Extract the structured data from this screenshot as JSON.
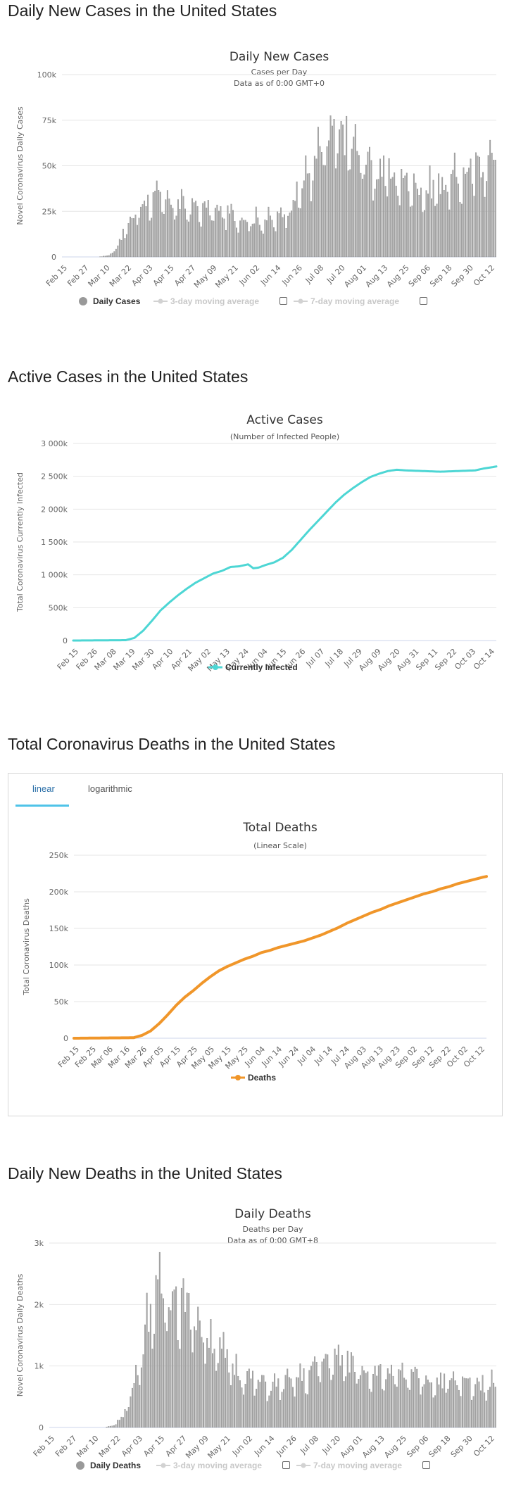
{
  "sections": {
    "daily_cases": "Daily New Cases in the United States",
    "active_cases": "Active Cases in the United States",
    "total_deaths": "Total Coronavirus Deaths in the United States",
    "daily_deaths": "Daily New Deaths in the United States"
  },
  "tabs": {
    "linear": "linear",
    "logarithmic": "logarithmic"
  },
  "legends": {
    "daily_cases": {
      "main": "Daily Cases",
      "ma3": "3-day moving average",
      "ma7": "7-day moving average"
    },
    "active_cases": {
      "main": "Currently Infected"
    },
    "total_deaths": {
      "main": "Deaths"
    },
    "daily_deaths": {
      "main": "Daily Deaths",
      "ma3": "3-day moving average",
      "ma7": "7-day moving average"
    }
  },
  "colors": {
    "bar": "#a8a8a8",
    "active": "#4dd6d4",
    "deaths": "#f0962a",
    "tab_accent": "#4fc3e8",
    "checkbox_border": "#666666"
  },
  "icons": {
    "legend_marker_main": "circle-marker",
    "legend_marker_disabled": "line-dot-marker",
    "checkbox": "empty-checkbox"
  },
  "chart_data": [
    {
      "id": "daily_cases",
      "type": "bar",
      "title": "Daily New Cases",
      "subtitle": "Cases per Day",
      "subtitle2": "Data as of 0:00 GMT+0",
      "xlabel": "",
      "ylabel": "Novel Coronavirus Daily Cases",
      "start_date": "2020-02-15",
      "num_days": 245,
      "x_tick_labels": [
        "Feb 15",
        "Feb 27",
        "Mar 10",
        "Mar 22",
        "Apr 03",
        "Apr 15",
        "Apr 27",
        "May 09",
        "May 21",
        "Jun 02",
        "Jun 14",
        "Jun 26",
        "Jul 08",
        "Jul 20",
        "Aug 01",
        "Aug 13",
        "Aug 25",
        "Sep 06",
        "Sep 18",
        "Sep 30",
        "Oct 12"
      ],
      "y_tick_labels": [
        "0",
        "25k",
        "50k",
        "75k",
        "100k"
      ],
      "ylim": [
        0,
        100000
      ],
      "grid": true,
      "series": [
        {
          "name": "Daily Cases",
          "keypoints": [
            [
              0,
              0
            ],
            [
              20,
              0
            ],
            [
              26,
              800
            ],
            [
              30,
              5000
            ],
            [
              35,
              15000
            ],
            [
              40,
              22000
            ],
            [
              45,
              30000
            ],
            [
              50,
              33000
            ],
            [
              60,
              31000
            ],
            [
              70,
              28000
            ],
            [
              80,
              27000
            ],
            [
              90,
              25000
            ],
            [
              100,
              22000
            ],
            [
              110,
              21000
            ],
            [
              120,
              21000
            ],
            [
              125,
              25000
            ],
            [
              130,
              32000
            ],
            [
              135,
              40000
            ],
            [
              140,
              50000
            ],
            [
              145,
              58000
            ],
            [
              150,
              65000
            ],
            [
              155,
              68000
            ],
            [
              160,
              67000
            ],
            [
              165,
              60000
            ],
            [
              170,
              55000
            ],
            [
              175,
              50000
            ],
            [
              180,
              48000
            ],
            [
              190,
              43000
            ],
            [
              200,
              40000
            ],
            [
              205,
              37000
            ],
            [
              210,
              40000
            ],
            [
              220,
              43000
            ],
            [
              230,
              48000
            ],
            [
              240,
              55000
            ],
            [
              244,
              58000
            ]
          ]
        }
      ]
    },
    {
      "id": "active_cases",
      "type": "line",
      "title": "Active Cases",
      "subtitle": "(Number of Infected People)",
      "xlabel": "",
      "ylabel": "Total Coronavirus Currently Infected",
      "start_date": "2020-02-15",
      "num_days": 243,
      "x_tick_labels": [
        "Feb 15",
        "Feb 26",
        "Mar 08",
        "Mar 19",
        "Mar 30",
        "Apr 10",
        "Apr 21",
        "May 02",
        "May 13",
        "May 24",
        "Jun 04",
        "Jun 15",
        "Jun 26",
        "Jul 07",
        "Jul 18",
        "Jul 29",
        "Aug 09",
        "Aug 20",
        "Aug 31",
        "Sep 11",
        "Sep 22",
        "Oct 03",
        "Oct 14"
      ],
      "y_tick_labels": [
        "0",
        "500k",
        "1 000k",
        "1 500k",
        "2 000k",
        "2 500k",
        "3 000k"
      ],
      "ylim": [
        0,
        3000000
      ],
      "grid": true,
      "series": [
        {
          "name": "Currently Infected",
          "keypoints": [
            [
              0,
              0
            ],
            [
              30,
              5000
            ],
            [
              35,
              40000
            ],
            [
              40,
              150000
            ],
            [
              45,
              300000
            ],
            [
              50,
              460000
            ],
            [
              55,
              580000
            ],
            [
              60,
              690000
            ],
            [
              65,
              790000
            ],
            [
              70,
              880000
            ],
            [
              75,
              950000
            ],
            [
              80,
              1020000
            ],
            [
              85,
              1060000
            ],
            [
              90,
              1120000
            ],
            [
              95,
              1130000
            ],
            [
              100,
              1160000
            ],
            [
              103,
              1100000
            ],
            [
              106,
              1110000
            ],
            [
              110,
              1150000
            ],
            [
              115,
              1190000
            ],
            [
              120,
              1260000
            ],
            [
              125,
              1380000
            ],
            [
              130,
              1530000
            ],
            [
              135,
              1680000
            ],
            [
              140,
              1820000
            ],
            [
              145,
              1960000
            ],
            [
              150,
              2100000
            ],
            [
              155,
              2220000
            ],
            [
              160,
              2320000
            ],
            [
              165,
              2410000
            ],
            [
              170,
              2490000
            ],
            [
              175,
              2540000
            ],
            [
              180,
              2580000
            ],
            [
              185,
              2600000
            ],
            [
              190,
              2590000
            ],
            [
              200,
              2580000
            ],
            [
              210,
              2570000
            ],
            [
              220,
              2580000
            ],
            [
              230,
              2590000
            ],
            [
              235,
              2620000
            ],
            [
              240,
              2640000
            ],
            [
              242,
              2650000
            ]
          ]
        }
      ]
    },
    {
      "id": "total_deaths",
      "type": "line",
      "title": "Total Deaths",
      "subtitle": "(Linear Scale)",
      "xlabel": "",
      "ylabel": "Total Coronavirus Deaths",
      "start_date": "2020-02-15",
      "num_days": 243,
      "x_tick_labels": [
        "Feb 15",
        "Feb 25",
        "Mar 06",
        "Mar 16",
        "Mar 26",
        "Apr 05",
        "Apr 15",
        "Apr 25",
        "May 05",
        "May 15",
        "May 25",
        "Jun 04",
        "Jun 14",
        "Jun 24",
        "Jul 04",
        "Jul 14",
        "Jul 24",
        "Aug 03",
        "Aug 13",
        "Aug 23",
        "Sep 02",
        "Sep 12",
        "Sep 22",
        "Oct 02",
        "Oct 12"
      ],
      "y_tick_labels": [
        "0",
        "50k",
        "100k",
        "150k",
        "200k",
        "250k"
      ],
      "ylim": [
        0,
        250000
      ],
      "grid": true,
      "series": [
        {
          "name": "Deaths",
          "keypoints": [
            [
              0,
              0
            ],
            [
              35,
              700
            ],
            [
              40,
              4000
            ],
            [
              45,
              10000
            ],
            [
              50,
              20000
            ],
            [
              55,
              32000
            ],
            [
              60,
              45000
            ],
            [
              65,
              56000
            ],
            [
              70,
              65000
            ],
            [
              75,
              75000
            ],
            [
              80,
              84000
            ],
            [
              85,
              92000
            ],
            [
              90,
              98000
            ],
            [
              95,
              103000
            ],
            [
              100,
              108000
            ],
            [
              105,
              112000
            ],
            [
              110,
              117000
            ],
            [
              115,
              120000
            ],
            [
              120,
              124000
            ],
            [
              125,
              127000
            ],
            [
              130,
              130000
            ],
            [
              135,
              133000
            ],
            [
              140,
              137000
            ],
            [
              145,
              141000
            ],
            [
              150,
              146000
            ],
            [
              155,
              151000
            ],
            [
              160,
              157000
            ],
            [
              165,
              162000
            ],
            [
              170,
              167000
            ],
            [
              175,
              172000
            ],
            [
              180,
              176000
            ],
            [
              185,
              181000
            ],
            [
              190,
              185000
            ],
            [
              195,
              189000
            ],
            [
              200,
              193000
            ],
            [
              205,
              197000
            ],
            [
              210,
              200000
            ],
            [
              215,
              204000
            ],
            [
              220,
              207000
            ],
            [
              225,
              211000
            ],
            [
              230,
              214000
            ],
            [
              235,
              217000
            ],
            [
              240,
              220000
            ],
            [
              242,
              221000
            ]
          ]
        }
      ]
    },
    {
      "id": "daily_deaths",
      "type": "bar",
      "title": "Daily Deaths",
      "subtitle": "Deaths per Day",
      "subtitle2": "Data as of 0:00 GMT+8",
      "xlabel": "",
      "ylabel": "Novel Coronavirus Daily Deaths",
      "start_date": "2020-02-15",
      "num_days": 245,
      "x_tick_labels": [
        "Feb 15",
        "Feb 27",
        "Mar 10",
        "Mar 22",
        "Apr 03",
        "Apr 15",
        "Apr 27",
        "May 09",
        "May 21",
        "Jun 02",
        "Jun 14",
        "Jun 26",
        "Jul 08",
        "Jul 20",
        "Aug 01",
        "Aug 13",
        "Aug 25",
        "Sep 06",
        "Sep 18",
        "Sep 30",
        "Oct 12"
      ],
      "y_tick_labels": [
        "0",
        "1k",
        "2k",
        "3k"
      ],
      "ylim": [
        0,
        3000
      ],
      "grid": true,
      "series": [
        {
          "name": "Daily Deaths",
          "keypoints": [
            [
              0,
              0
            ],
            [
              30,
              0
            ],
            [
              35,
              40
            ],
            [
              40,
              200
            ],
            [
              45,
              600
            ],
            [
              50,
              1300
            ],
            [
              55,
              2000
            ],
            [
              60,
              2200
            ],
            [
              65,
              2300
            ],
            [
              70,
              2200
            ],
            [
              75,
              2000
            ],
            [
              80,
              1800
            ],
            [
              85,
              1600
            ],
            [
              90,
              1400
            ],
            [
              95,
              1200
            ],
            [
              100,
              1000
            ],
            [
              105,
              900
            ],
            [
              110,
              800
            ],
            [
              115,
              750
            ],
            [
              120,
              700
            ],
            [
              125,
              700
            ],
            [
              130,
              750
            ],
            [
              135,
              800
            ],
            [
              140,
              850
            ],
            [
              145,
              1000
            ],
            [
              150,
              1100
            ],
            [
              155,
              1150
            ],
            [
              160,
              1100
            ],
            [
              165,
              1050
            ],
            [
              170,
              1000
            ],
            [
              175,
              950
            ],
            [
              180,
              900
            ],
            [
              185,
              880
            ],
            [
              190,
              850
            ],
            [
              200,
              820
            ],
            [
              210,
              780
            ],
            [
              220,
              760
            ],
            [
              230,
              740
            ],
            [
              240,
              720
            ],
            [
              244,
              740
            ]
          ]
        }
      ]
    }
  ]
}
